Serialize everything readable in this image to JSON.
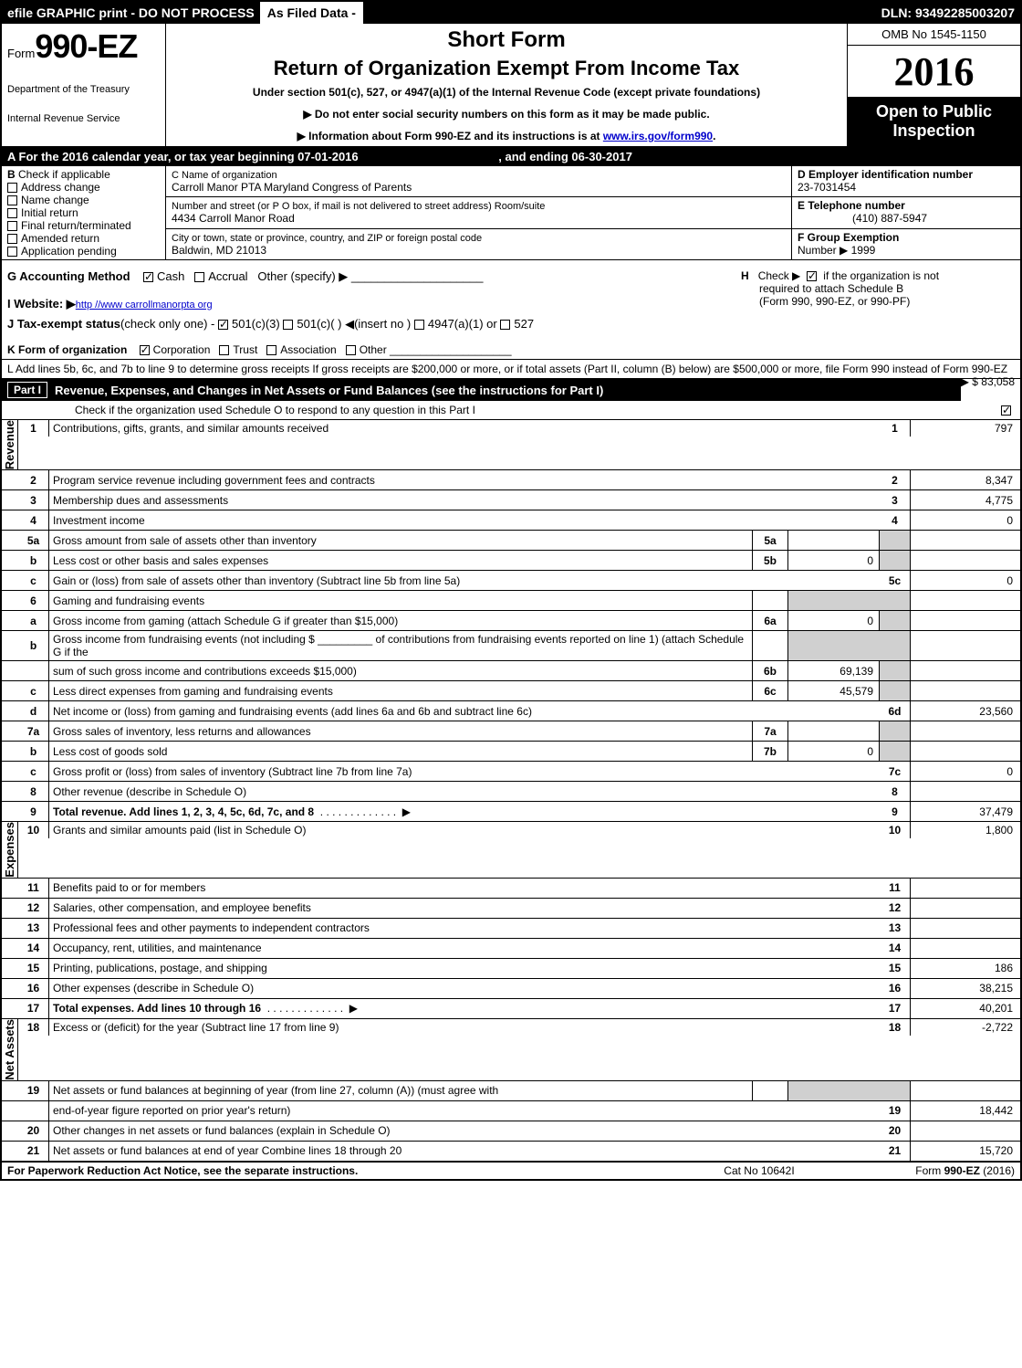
{
  "topbar": {
    "left": "efile GRAPHIC print - DO NOT PROCESS",
    "mid": "As Filed Data -",
    "right": "DLN: 93492285003207"
  },
  "header": {
    "form_prefix": "Form",
    "form_number": "990-EZ",
    "dept1": "Department of the Treasury",
    "dept2": "Internal Revenue Service",
    "short_form": "Short Form",
    "title": "Return of Organization Exempt From Income Tax",
    "under": "Under section 501(c), 527, or 4947(a)(1) of the Internal Revenue Code (except private foundations)",
    "arrow1": "▶ Do not enter social security numbers on this form as it may be made public.",
    "arrow2": "▶ Information about Form 990-EZ and its instructions is at www.irs.gov/form990.",
    "omb": "OMB No 1545-1150",
    "year": "2016",
    "open1": "Open to Public",
    "open2": "Inspection"
  },
  "rowA": {
    "label": "A  For the 2016 calendar year, or tax year beginning 07-01-2016",
    "ending": ", and ending 06-30-2017"
  },
  "sectionB": {
    "b_label": "B",
    "check_if": "Check if applicable",
    "items": [
      "Address change",
      "Name change",
      "Initial return",
      "Final return/terminated",
      "Amended return",
      "Application pending"
    ]
  },
  "sectionC": {
    "c_label": "C Name of organization",
    "org_name": "Carroll Manor PTA Maryland Congress of Parents",
    "street_label": "Number and street (or P  O  box, if mail is not delivered to street address)  Room/suite",
    "street": "4434 Carroll Manor Road",
    "city_label": "City or town, state or province, country, and ZIP or foreign postal code",
    "city": "Baldwin, MD  21013"
  },
  "sectionD": {
    "d_label": "D Employer identification number",
    "ein": "23-7031454",
    "e_label": "E Telephone number",
    "phone": "(410) 887-5947",
    "f_label": "F Group Exemption",
    "f_num_label": "Number  ▶",
    "f_num": "1999"
  },
  "accounting": {
    "g_label": "G Accounting Method",
    "cash": "Cash",
    "accrual": "Accrual",
    "other": "Other (specify) ▶",
    "h_label": "H",
    "h_text1": "Check ▶",
    "h_text2": "if the organization is not",
    "h_text3": "required to attach Schedule B",
    "h_text4": "(Form 990, 990-EZ, or 990-PF)",
    "i_label": "I Website: ▶",
    "i_url": "http //www carrollmanorpta org",
    "j_label": "J Tax-exempt status",
    "j_text": "(check only one) -",
    "j_501c3": "501(c)(3)",
    "j_501c": "501(c)(  )",
    "j_insert": "◀(insert no )",
    "j_4947": "4947(a)(1) or",
    "j_527": "527",
    "k_label": "K Form of organization",
    "k_corp": "Corporation",
    "k_trust": "Trust",
    "k_assoc": "Association",
    "k_other": "Other",
    "l_text": "L Add lines 5b, 6c, and 7b to line 9 to determine gross receipts  If gross receipts are $200,000 or more, or if total assets (Part II, column (B) below) are $500,000 or more, file Form 990 instead of Form 990-EZ",
    "l_amount": "▶ $ 83,058"
  },
  "part1": {
    "label": "Part I",
    "title": "Revenue, Expenses, and Changes in Net Assets or Fund Balances (see the instructions for Part I)",
    "check_text": "Check if the organization used Schedule O to respond to any question in this Part I"
  },
  "sides": {
    "revenue": "Revenue",
    "expenses": "Expenses",
    "netassets": "Net Assets"
  },
  "lines": [
    {
      "n": "1",
      "d": "Contributions, gifts, grants, and similar amounts received",
      "rn": "1",
      "rv": "797"
    },
    {
      "n": "2",
      "d": "Program service revenue including government fees and contracts",
      "rn": "2",
      "rv": "8,347"
    },
    {
      "n": "3",
      "d": "Membership dues and assessments",
      "rn": "3",
      "rv": "4,775"
    },
    {
      "n": "4",
      "d": "Investment income",
      "rn": "4",
      "rv": "0"
    },
    {
      "n": "5a",
      "d": "Gross amount from sale of assets other than inventory",
      "in": "5a",
      "iv": "",
      "shade": true
    },
    {
      "n": "b",
      "d": "Less  cost or other basis and sales expenses",
      "in": "5b",
      "iv": "0",
      "shade": true
    },
    {
      "n": "c",
      "d": "Gain or (loss) from sale of assets other than inventory (Subtract line 5b from line 5a)",
      "rn": "5c",
      "rv": "0"
    },
    {
      "n": "6",
      "d": "Gaming and fundraising events",
      "shade": true
    },
    {
      "n": "a",
      "d": "Gross income from gaming (attach Schedule G if greater than $15,000)",
      "in": "6a",
      "iv": "0",
      "shade": true
    },
    {
      "n": "b",
      "d": "Gross income from fundraising events (not including $ _________ of contributions from fundraising events reported on line 1) (attach Schedule G if the",
      "shade": true
    },
    {
      "n": "",
      "d": "sum of such gross income and contributions exceeds $15,000)",
      "in": "6b",
      "iv": "69,139",
      "shade": true
    },
    {
      "n": "c",
      "d": "Less  direct expenses from gaming and fundraising events",
      "in": "6c",
      "iv": "45,579",
      "shade": true
    },
    {
      "n": "d",
      "d": "Net income or (loss) from gaming and fundraising events (add lines 6a and 6b and subtract line 6c)",
      "rn": "6d",
      "rv": "23,560"
    },
    {
      "n": "7a",
      "d": "Gross sales of inventory, less returns and allowances",
      "in": "7a",
      "iv": "",
      "shade": true
    },
    {
      "n": "b",
      "d": "Less  cost of goods sold",
      "in": "7b",
      "iv": "0",
      "shade": true
    },
    {
      "n": "c",
      "d": "Gross profit or (loss) from sales of inventory (Subtract line 7b from line 7a)",
      "rn": "7c",
      "rv": "0"
    },
    {
      "n": "8",
      "d": "Other revenue (describe in Schedule O)",
      "rn": "8",
      "rv": ""
    },
    {
      "n": "9",
      "d": "Total revenue. Add lines 1, 2, 3, 4, 5c, 6d, 7c, and 8",
      "rn": "9",
      "rv": "37,479",
      "bold": true,
      "arrow": true
    },
    {
      "n": "10",
      "d": "Grants and similar amounts paid (list in Schedule O)",
      "rn": "10",
      "rv": "1,800",
      "section": "expenses"
    },
    {
      "n": "11",
      "d": "Benefits paid to or for members",
      "rn": "11",
      "rv": ""
    },
    {
      "n": "12",
      "d": "Salaries, other compensation, and employee benefits",
      "rn": "12",
      "rv": ""
    },
    {
      "n": "13",
      "d": "Professional fees and other payments to independent contractors",
      "rn": "13",
      "rv": ""
    },
    {
      "n": "14",
      "d": "Occupancy, rent, utilities, and maintenance",
      "rn": "14",
      "rv": ""
    },
    {
      "n": "15",
      "d": "Printing, publications, postage, and shipping",
      "rn": "15",
      "rv": "186"
    },
    {
      "n": "16",
      "d": "Other expenses (describe in Schedule O)",
      "rn": "16",
      "rv": "38,215"
    },
    {
      "n": "17",
      "d": "Total expenses. Add lines 10 through 16",
      "rn": "17",
      "rv": "40,201",
      "bold": true,
      "arrow": true
    },
    {
      "n": "18",
      "d": "Excess or (deficit) for the year (Subtract line 17 from line 9)",
      "rn": "18",
      "rv": "-2,722",
      "section": "netassets"
    },
    {
      "n": "19",
      "d": "Net assets or fund balances at beginning of year (from line 27, column (A)) (must agree with",
      "shade": true
    },
    {
      "n": "",
      "d": "end-of-year figure reported on prior year's return)",
      "rn": "19",
      "rv": "18,442"
    },
    {
      "n": "20",
      "d": "Other changes in net assets or fund balances (explain in Schedule O)",
      "rn": "20",
      "rv": ""
    },
    {
      "n": "21",
      "d": "Net assets or fund balances at end of year  Combine lines 18 through 20",
      "rn": "21",
      "rv": "15,720"
    }
  ],
  "footer": {
    "left": "For Paperwork Reduction Act Notice, see the separate instructions.",
    "mid": "Cat No  10642I",
    "right": "Form 990-EZ (2016)"
  }
}
